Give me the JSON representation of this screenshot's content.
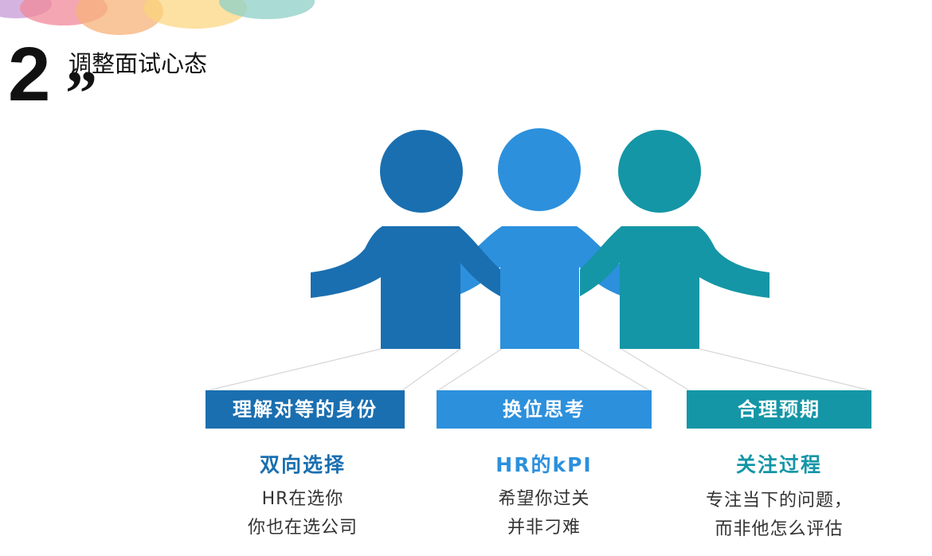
{
  "header": {
    "number": "2",
    "title": "调整面试心态",
    "quote_mark": "”"
  },
  "colors": {
    "dark_blue": "#1a6fb0",
    "light_blue": "#2c90dc",
    "teal": "#1496a6"
  },
  "columns": [
    {
      "label": "理解对等的身份",
      "heading": "双向选择",
      "lines": [
        "HR在选你",
        "你也在选公司"
      ]
    },
    {
      "label": "换位思考",
      "heading": "HR的kPI",
      "lines": [
        "希望你过关",
        "并非刁难"
      ]
    },
    {
      "label": "合理预期",
      "heading": "关注过程",
      "lines": [
        "专注当下的问题，",
        "而非他怎么评估"
      ]
    }
  ]
}
